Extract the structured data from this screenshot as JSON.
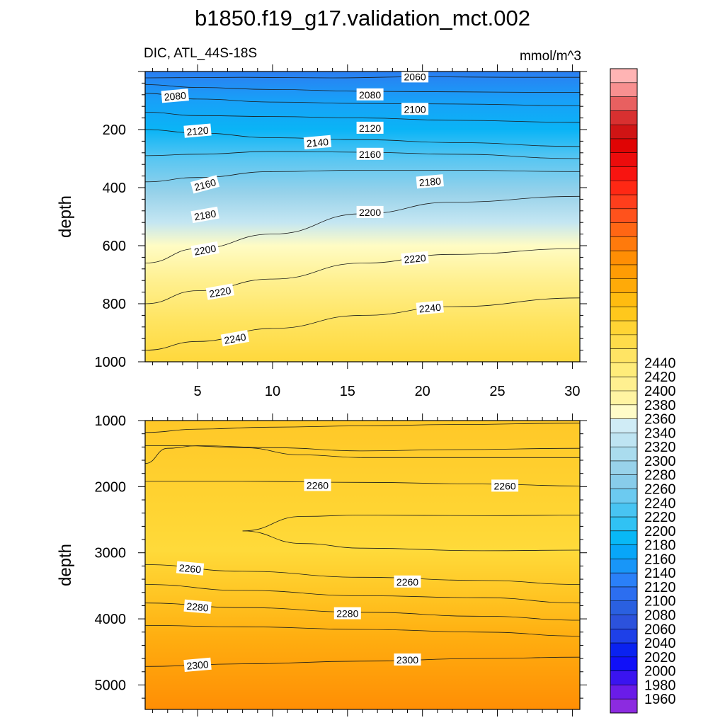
{
  "title": "b1850.f19_g17.validation_mct.002",
  "left_label": "DIC, ATL_44S-18S",
  "right_label": "mmol/m^3",
  "chart_data": [
    {
      "type": "contour",
      "panel": "upper",
      "ylabel": "depth",
      "xlim": [
        1.5,
        30.5
      ],
      "ylim": [
        1000,
        0
      ],
      "x_ticks": [
        5,
        10,
        15,
        20,
        25,
        30
      ],
      "y_ticks": [
        200,
        400,
        600,
        800,
        1000
      ],
      "contours": [
        {
          "level": 2060,
          "points": [
            [
              1.5,
              22
            ],
            [
              8,
              20
            ],
            [
              14,
              22
            ],
            [
              20,
              18
            ],
            [
              26,
              20
            ],
            [
              30.5,
              20
            ]
          ]
        },
        {
          "level": 2080,
          "points": [
            [
              1.5,
              45
            ],
            [
              5,
              55
            ],
            [
              10,
              62
            ],
            [
              16,
              68
            ],
            [
              22,
              70
            ],
            [
              28,
              72
            ],
            [
              30.5,
              72
            ]
          ]
        },
        {
          "level": 2100,
          "points": [
            [
              1.5,
              75
            ],
            [
              5,
              95
            ],
            [
              10,
              105
            ],
            [
              16,
              110
            ],
            [
              22,
              112
            ],
            [
              30.5,
              118
            ]
          ]
        },
        {
          "level": 2120,
          "points": [
            [
              1.5,
              140
            ],
            [
              5,
              152
            ],
            [
              10,
              155
            ],
            [
              16,
              160
            ],
            [
              22,
              168
            ],
            [
              30.5,
              175
            ]
          ]
        },
        {
          "level": 2140,
          "points": [
            [
              1.5,
              200
            ],
            [
              5,
              212
            ],
            [
              10,
              228
            ],
            [
              16,
              235
            ],
            [
              22,
              245
            ],
            [
              30.5,
              258
            ]
          ]
        },
        {
          "level": 2160,
          "points": [
            [
              1.5,
              290
            ],
            [
              5,
              285
            ],
            [
              10,
              275
            ],
            [
              16,
              278
            ],
            [
              22,
              285
            ],
            [
              30.5,
              300
            ]
          ]
        },
        {
          "level": 2180,
          "points": [
            [
              1.5,
              380
            ],
            [
              5,
              365
            ],
            [
              10,
              345
            ],
            [
              16,
              340
            ],
            [
              22,
              340
            ],
            [
              30.5,
              345
            ]
          ]
        },
        {
          "level": 2200,
          "points": [
            [
              1.5,
              660
            ],
            [
              5,
              610
            ],
            [
              10,
              560
            ],
            [
              16,
              490
            ],
            [
              22,
              450
            ],
            [
              30.5,
              430
            ]
          ]
        },
        {
          "level": 2220,
          "points": [
            [
              1.5,
              800
            ],
            [
              5,
              755
            ],
            [
              10,
              715
            ],
            [
              16,
              660
            ],
            [
              22,
              630
            ],
            [
              30.5,
              610
            ]
          ]
        },
        {
          "level": 2240,
          "points": [
            [
              1.5,
              960
            ],
            [
              5,
              930
            ],
            [
              10,
              885
            ],
            [
              16,
              840
            ],
            [
              22,
              810
            ],
            [
              30.5,
              780
            ]
          ]
        }
      ],
      "labels": [
        {
          "text": "2060",
          "x": 19.5,
          "y": 18,
          "angle": 0
        },
        {
          "text": "2080",
          "x": 3.5,
          "y": 85,
          "angle": -5
        },
        {
          "text": "2080",
          "x": 16.5,
          "y": 80,
          "angle": 0
        },
        {
          "text": "2100",
          "x": 19.5,
          "y": 130,
          "angle": 0
        },
        {
          "text": "2120",
          "x": 5,
          "y": 205,
          "angle": -5
        },
        {
          "text": "2120",
          "x": 16.5,
          "y": 195,
          "angle": 0
        },
        {
          "text": "2140",
          "x": 13,
          "y": 245,
          "angle": -5
        },
        {
          "text": "2160",
          "x": 16.5,
          "y": 285,
          "angle": 0
        },
        {
          "text": "2160",
          "x": 5.5,
          "y": 390,
          "angle": -15
        },
        {
          "text": "2180",
          "x": 20.5,
          "y": 380,
          "angle": -5
        },
        {
          "text": "2180",
          "x": 5.5,
          "y": 495,
          "angle": -10
        },
        {
          "text": "2200",
          "x": 16.5,
          "y": 485,
          "angle": 0
        },
        {
          "text": "2200",
          "x": 5.5,
          "y": 615,
          "angle": -10
        },
        {
          "text": "2220",
          "x": 19.5,
          "y": 645,
          "angle": -5
        },
        {
          "text": "2220",
          "x": 6.5,
          "y": 760,
          "angle": -10
        },
        {
          "text": "2240",
          "x": 20.5,
          "y": 815,
          "angle": -5
        },
        {
          "text": "2240",
          "x": 7.5,
          "y": 920,
          "angle": -10
        }
      ]
    },
    {
      "type": "contour",
      "panel": "lower",
      "ylabel": "depth",
      "xlim": [
        1.5,
        30.5
      ],
      "ylim": [
        5370,
        1000
      ],
      "y_ticks": [
        1000,
        2000,
        3000,
        4000,
        5000
      ],
      "contours": [
        {
          "level": 2250,
          "points": [
            [
              1.5,
              1180
            ],
            [
              5,
              1130
            ],
            [
              10,
              1100
            ],
            [
              16,
              1080
            ],
            [
              22,
              1060
            ],
            [
              30.5,
              1040
            ]
          ]
        },
        {
          "level": 2255,
          "points": [
            [
              1.5,
              1380
            ],
            [
              4,
              1380
            ],
            [
              8,
              1410
            ],
            [
              12,
              1520
            ],
            [
              16,
              1560
            ],
            [
              22,
              1560
            ],
            [
              30.5,
              1560
            ]
          ]
        },
        {
          "level": 2258,
          "points": [
            [
              1.5,
              1650
            ],
            [
              3,
              1420
            ],
            [
              5,
              1380
            ],
            [
              10,
              1410
            ],
            [
              16,
              1460
            ],
            [
              22,
              1440
            ],
            [
              30.5,
              1420
            ]
          ]
        },
        {
          "level": 2260,
          "points": [
            [
              1.5,
              1920
            ],
            [
              8,
              1920
            ],
            [
              16,
              1935
            ],
            [
              24,
              1960
            ],
            [
              30.5,
              1990
            ]
          ]
        },
        {
          "level": 2262,
          "points": [
            [
              8,
              2670
            ],
            [
              12,
              2450
            ],
            [
              16,
              2430
            ],
            [
              24,
              2440
            ],
            [
              30.5,
              2430
            ]
          ]
        },
        {
          "level": 2262,
          "points": [
            [
              8,
              2670
            ],
            [
              12,
              2860
            ],
            [
              16,
              2930
            ],
            [
              24,
              2970
            ],
            [
              30.5,
              2960
            ]
          ]
        },
        {
          "level": 2260,
          "points": [
            [
              1.5,
              3180
            ],
            [
              8,
              3280
            ],
            [
              16,
              3370
            ],
            [
              24,
              3420
            ],
            [
              30.5,
              3480
            ]
          ]
        },
        {
          "level": 2270,
          "points": [
            [
              1.5,
              3480
            ],
            [
              8,
              3570
            ],
            [
              16,
              3650
            ],
            [
              24,
              3680
            ],
            [
              30.5,
              3760
            ]
          ]
        },
        {
          "level": 2280,
          "points": [
            [
              1.5,
              3760
            ],
            [
              8,
              3830
            ],
            [
              16,
              3900
            ],
            [
              24,
              3960
            ],
            [
              30.5,
              4020
            ]
          ]
        },
        {
          "level": 2290,
          "points": [
            [
              1.5,
              4100
            ],
            [
              8,
              4120
            ],
            [
              16,
              4160
            ],
            [
              24,
              4200
            ],
            [
              30.5,
              4260
            ]
          ]
        },
        {
          "level": 2300,
          "points": [
            [
              1.5,
              4720
            ],
            [
              8,
              4680
            ],
            [
              16,
              4640
            ],
            [
              24,
              4600
            ],
            [
              30.5,
              4580
            ]
          ]
        }
      ],
      "labels": [
        {
          "text": "2260",
          "x": 13,
          "y": 1980,
          "angle": 0
        },
        {
          "text": "2260",
          "x": 25.5,
          "y": 1990,
          "angle": 0
        },
        {
          "text": "2260",
          "x": 4.5,
          "y": 3240,
          "angle": 5
        },
        {
          "text": "2260",
          "x": 19,
          "y": 3440,
          "angle": 0
        },
        {
          "text": "2280",
          "x": 5,
          "y": 3820,
          "angle": 5
        },
        {
          "text": "2280",
          "x": 15,
          "y": 3920,
          "angle": 0
        },
        {
          "text": "2300",
          "x": 5,
          "y": 4700,
          "angle": -5
        },
        {
          "text": "2300",
          "x": 19,
          "y": 4620,
          "angle": 0
        }
      ]
    }
  ],
  "colorbar": {
    "tick_labels": [
      "1960",
      "1980",
      "2000",
      "2020",
      "2040",
      "2060",
      "2080",
      "2100",
      "2120",
      "2140",
      "2160",
      "2180",
      "2200",
      "2220",
      "2240",
      "2260",
      "2280",
      "2300",
      "2320",
      "2340",
      "2360",
      "2380",
      "2400",
      "2420",
      "2440"
    ],
    "colors": [
      "#8c2be0",
      "#6a1ce8",
      "#3a14f0",
      "#1010f8",
      "#0a22f0",
      "#1e40e8",
      "#2c52dc",
      "#2a60e0",
      "#2c6ef0",
      "#2a80f8",
      "#1896f8",
      "#08a6f8",
      "#08b8f6",
      "#30c2f4",
      "#48c4f2",
      "#6ccaf0",
      "#88ccea",
      "#98d2ea",
      "#aadcee",
      "#bee4f2",
      "#d0ecf6",
      "#fffcc8",
      "#fff4a2",
      "#fff090",
      "#ffec7a",
      "#ffe464",
      "#ffdc4a",
      "#ffd434",
      "#ffc81c",
      "#ffbc10",
      "#ffaa08",
      "#ff9c04",
      "#ff8e04",
      "#ff7a0c",
      "#ff6614",
      "#ff521c",
      "#ff3e1c",
      "#ff2814",
      "#f81410",
      "#ec0c0c",
      "#e00404",
      "#d01414",
      "#d83030",
      "#e86060",
      "#f89090",
      "#ffb4b4"
    ]
  }
}
